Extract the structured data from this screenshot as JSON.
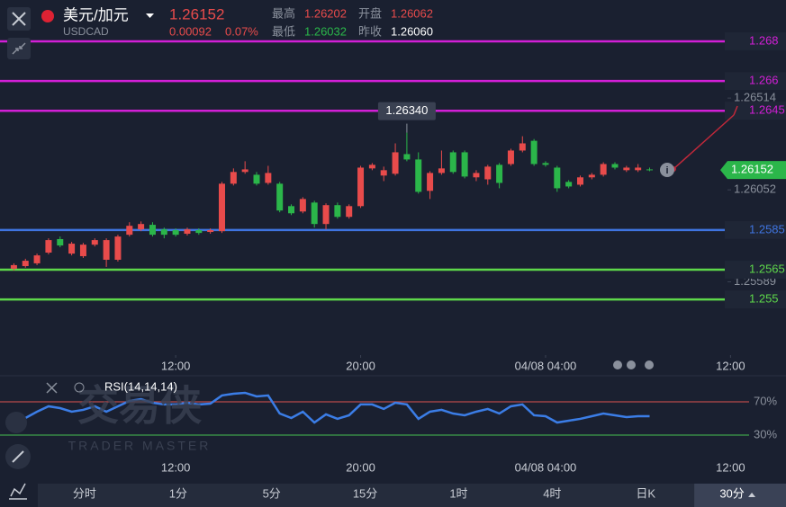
{
  "header": {
    "pair": "美元/加元",
    "symbol": "USDCAD",
    "price": "1.26152",
    "change": "0.00092",
    "change_pct": "0.07%",
    "stats": [
      {
        "label": "最高",
        "value": "1.26202"
      },
      {
        "label": "开盘",
        "value": "1.26062"
      },
      {
        "label": "最低",
        "value": "1.26032"
      },
      {
        "label": "昨收",
        "value": "1.26060"
      }
    ]
  },
  "watermark": {
    "cn": "交易侠",
    "en": "TRADER MASTER"
  },
  "toolbar": {
    "periods": [
      "分时",
      "1分",
      "5分",
      "15分",
      "1时",
      "4时",
      "日K",
      "30分"
    ]
  },
  "chart_data": [
    {
      "type": "candlestick",
      "open": [
        1.25655,
        1.25668,
        1.25682,
        1.25736,
        1.25804,
        1.25731,
        1.25718,
        1.25776,
        1.257,
        1.257,
        1.25826,
        1.25853,
        1.25876,
        1.25853,
        1.25849,
        1.25831,
        1.25849,
        1.2584,
        1.25844,
        1.26083,
        1.26142,
        1.26128,
        1.26087,
        1.26083,
        1.2597,
        1.25943,
        1.25988,
        1.2588,
        1.25975,
        1.25916,
        1.2597,
        1.2616,
        1.26124,
        1.26133,
        1.26232,
        1.26205,
        1.26047,
        1.26137,
        1.26241,
        1.26241,
        1.26115,
        1.26105,
        1.26178,
        1.26182,
        1.2625,
        1.26299,
        1.26187,
        1.26164,
        1.26092,
        1.26078,
        1.26115,
        1.26128,
        1.26182,
        1.26151,
        1.26151,
        1.26155
      ],
      "high": [
        1.25682,
        1.25705,
        1.25731,
        1.25808,
        1.25817,
        1.2579,
        1.25785,
        1.25808,
        1.25808,
        1.25826,
        1.25889,
        1.25893,
        1.25889,
        1.25862,
        1.25858,
        1.25862,
        1.25858,
        1.25858,
        1.26092,
        1.2616,
        1.26196,
        1.26142,
        1.26173,
        1.26092,
        1.25979,
        1.26015,
        1.25997,
        1.25984,
        1.25988,
        1.25979,
        1.26173,
        1.26187,
        1.26169,
        1.26286,
        1.2634,
        1.26241,
        1.26146,
        1.2625,
        1.2625,
        1.2625,
        1.26151,
        1.26178,
        1.26187,
        1.26259,
        1.26322,
        1.26308,
        1.26196,
        1.26173,
        1.26101,
        1.26124,
        1.26137,
        1.26191,
        1.26191,
        1.26173,
        1.26182,
        1.26164
      ],
      "low": [
        1.25646,
        1.2566,
        1.25673,
        1.25727,
        1.25763,
        1.25722,
        1.25709,
        1.25767,
        1.25664,
        1.25691,
        1.25817,
        1.25844,
        1.25817,
        1.25808,
        1.25817,
        1.25822,
        1.25826,
        1.25831,
        1.25835,
        1.26074,
        1.26133,
        1.26074,
        1.26078,
        1.25939,
        1.25925,
        1.25934,
        1.25862,
        1.25853,
        1.25907,
        1.25907,
        1.25961,
        1.26151,
        1.26096,
        1.26124,
        1.26196,
        1.26033,
        1.26006,
        1.26128,
        1.26133,
        1.2611,
        1.26096,
        1.26078,
        1.2606,
        1.26173,
        1.26241,
        1.26173,
        1.26169,
        1.26042,
        1.2606,
        1.26069,
        1.26105,
        1.26119,
        1.26155,
        1.26142,
        1.26142,
        1.26146
      ],
      "close": [
        1.25673,
        1.25695,
        1.25722,
        1.25799,
        1.25772,
        1.25781,
        1.25776,
        1.25799,
        1.25799,
        1.25817,
        1.25871,
        1.2588,
        1.25826,
        1.25826,
        1.25826,
        1.25853,
        1.25835,
        1.25849,
        1.26083,
        1.26142,
        1.26155,
        1.26083,
        1.26137,
        1.25948,
        1.25934,
        1.26006,
        1.2588,
        1.25975,
        1.25916,
        1.2597,
        1.26164,
        1.26178,
        1.26151,
        1.26241,
        1.26205,
        1.26042,
        1.26137,
        1.2616,
        1.26142,
        1.26119,
        1.26137,
        1.26169,
        1.26087,
        1.2625,
        1.26286,
        1.26182,
        1.26178,
        1.2606,
        1.26069,
        1.26115,
        1.26128,
        1.26182,
        1.26164,
        1.26164,
        1.26164,
        1.26152
      ],
      "up_color": "#e84b4b",
      "down_color": "#2bb64a",
      "xlim": [
        -1.2,
        66.8
      ],
      "xticks": [
        {
          "value": 14,
          "label": "12:00"
        },
        {
          "value": 30,
          "label": "20:00"
        },
        {
          "value": 46,
          "label": "04/08 04:00"
        },
        {
          "value": 62,
          "label": "12:00"
        }
      ],
      "ylim": [
        1.2522,
        1.27008
      ],
      "yticks": [
        1.26514,
        1.26052,
        1.25589
      ],
      "levels": [
        {
          "value": 1.268,
          "color": "#d21fd6"
        },
        {
          "value": 1.266,
          "color": "#d21fd6"
        },
        {
          "value": 1.2645,
          "color": "#d21fd6"
        },
        {
          "value": 1.2585,
          "color": "#3f74e0"
        },
        {
          "value": 1.2565,
          "color": "#5ed84a"
        },
        {
          "value": 1.255,
          "color": "#5ed84a"
        }
      ],
      "last": {
        "value": 1.26152,
        "color": "#2bb64a"
      },
      "annotation": {
        "value": 1.2634,
        "label": "1.26340"
      }
    },
    {
      "type": "line",
      "title": "RSI(14,14,14)",
      "color": "#3b7de6",
      "values": [
        53.8,
        50.5,
        58.1,
        64.6,
        62.4,
        58.1,
        60.3,
        64.6,
        58.1,
        64.6,
        71.1,
        73.2,
        68.9,
        66.8,
        66.8,
        68.9,
        66.8,
        67.8,
        77.6,
        79.7,
        80.8,
        76.5,
        77.6,
        55.9,
        50.5,
        58.1,
        45.1,
        54.9,
        49.5,
        53.8,
        66.8,
        66.8,
        61.4,
        68.9,
        66.8,
        49.5,
        58.1,
        60.3,
        55.9,
        53.8,
        58.1,
        61.4,
        55.9,
        64.6,
        66.8,
        53.8,
        52.7,
        45.1,
        47.3,
        49.5,
        52.7,
        55.9,
        53.8,
        51.6,
        52.7,
        52.7
      ],
      "xlim": [
        -1.2,
        66.8
      ],
      "xticks": [
        {
          "value": 14,
          "label": "12:00"
        },
        {
          "value": 30,
          "label": "20:00"
        },
        {
          "value": 46,
          "label": "04/08 04:00"
        },
        {
          "value": 62,
          "label": "12:00"
        }
      ],
      "ylim": [
        12.7,
        90.5
      ],
      "yticks": [
        {
          "value": 70,
          "label": "70%"
        },
        {
          "value": 30,
          "label": "30%"
        }
      ],
      "ytick_colors": [
        "#b84a4a",
        "#3da04a"
      ]
    }
  ]
}
